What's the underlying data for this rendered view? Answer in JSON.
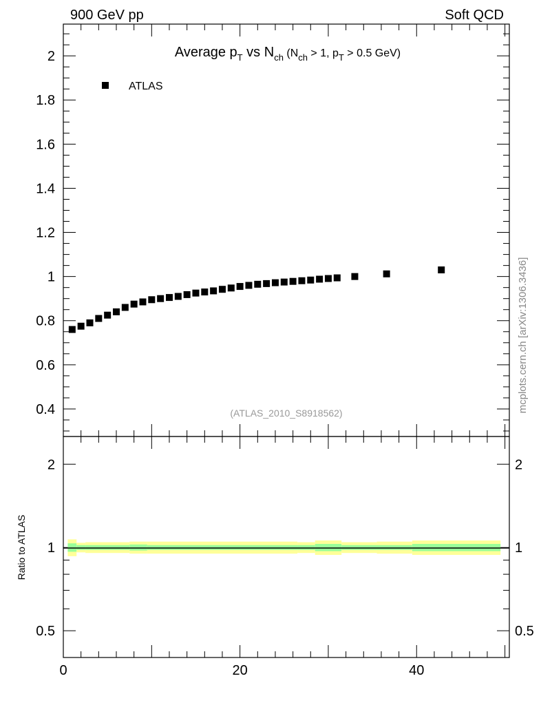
{
  "header": {
    "left": "900 GeV pp",
    "right": "Soft QCD"
  },
  "side_label": "mcplots.cern.ch [arXiv:1306.3436]",
  "chart_data": {
    "type": "scatter",
    "title_segments": [
      {
        "t": "Average p",
        "sub": false
      },
      {
        "t": "T",
        "sub": true
      },
      {
        "t": " vs N",
        "sub": false
      },
      {
        "t": "ch",
        "sub": true
      },
      {
        "t": " (N",
        "sub": false,
        "small": true
      },
      {
        "t": "ch",
        "sub": true
      },
      {
        "t": " > 1, p",
        "sub": false,
        "small": true
      },
      {
        "t": "T",
        "sub": true
      },
      {
        "t": " > 0.5 GeV)",
        "sub": false,
        "small": true
      }
    ],
    "analysis_label": "(ATLAS_2010_S8918562)",
    "legend": [
      {
        "name": "ATLAS",
        "marker": "square",
        "color": "#000000"
      }
    ],
    "legend_placement": "top-left",
    "xlim": [
      0,
      50.5
    ],
    "ylim": [
      0.275,
      2.144
    ],
    "x_ticks": [
      "0",
      "20",
      "40"
    ],
    "y_ticks": [
      "0.4",
      "0.6",
      "0.8",
      "1",
      "1.2",
      "1.4",
      "1.6",
      "1.8",
      "2"
    ],
    "series": [
      {
        "name": "ATLAS",
        "x": [
          1,
          2,
          3,
          4,
          5,
          6,
          7,
          8,
          9,
          10,
          11,
          12,
          13,
          14,
          15,
          16,
          17,
          18,
          19,
          20,
          21,
          22,
          23,
          24,
          25,
          26,
          27,
          28,
          29,
          30,
          31,
          33,
          36.6,
          42.8
        ],
        "y": [
          0.76,
          0.775,
          0.79,
          0.81,
          0.825,
          0.84,
          0.86,
          0.875,
          0.885,
          0.895,
          0.9,
          0.905,
          0.91,
          0.918,
          0.925,
          0.93,
          0.935,
          0.942,
          0.948,
          0.955,
          0.96,
          0.965,
          0.968,
          0.972,
          0.975,
          0.978,
          0.981,
          0.984,
          0.988,
          0.991,
          0.994,
          1.0,
          1.012,
          1.03
        ]
      }
    ],
    "ratio": {
      "ylabel": "Ratio to ATLAS",
      "ylim": [
        0.4,
        2.52
      ],
      "scale": "log",
      "y_ticks": [
        "0.5",
        "1",
        "2"
      ],
      "band_edges": [
        0.5,
        1.5,
        2.5,
        7.5,
        9.5,
        26.5,
        28.5,
        31.5,
        35.5,
        39.5,
        49.5
      ],
      "band_outer": [
        0.07,
        0.04,
        0.045,
        0.05,
        0.05,
        0.045,
        0.06,
        0.045,
        0.05,
        0.06
      ],
      "band_inner": [
        0.035,
        0.02,
        0.02,
        0.025,
        0.02,
        0.02,
        0.03,
        0.02,
        0.02,
        0.03
      ],
      "band_colors": {
        "outer": "#ffff99",
        "inner": "#99ff99"
      }
    }
  }
}
